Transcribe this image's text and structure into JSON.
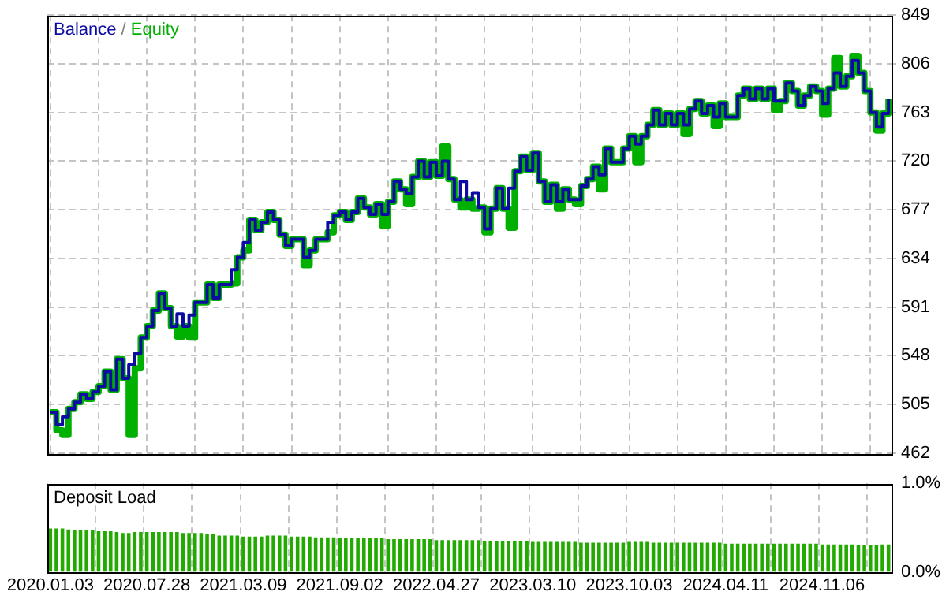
{
  "chart_data": [
    {
      "type": "step",
      "categories": [
        "2020.01.03",
        null,
        null,
        null,
        null,
        null,
        null,
        null,
        null,
        null,
        null,
        null,
        null,
        null,
        null,
        null,
        "2020.07.28",
        null,
        null,
        null,
        null,
        null,
        null,
        null,
        null,
        null,
        null,
        null,
        null,
        null,
        null,
        null,
        "2021.03.09",
        null,
        null,
        null,
        null,
        null,
        null,
        null,
        null,
        null,
        null,
        null,
        null,
        null,
        null,
        null,
        "2021.09.02",
        null,
        null,
        null,
        null,
        null,
        null,
        null,
        null,
        null,
        null,
        null,
        null,
        null,
        null,
        null,
        "2022.04.27",
        null,
        null,
        null,
        null,
        null,
        null,
        null,
        null,
        null,
        null,
        null,
        null,
        null,
        null,
        null,
        "2023.03.10",
        null,
        null,
        null,
        null,
        null,
        null,
        null,
        null,
        null,
        null,
        null,
        null,
        null,
        null,
        null,
        "2023.10.03",
        null,
        null,
        null,
        null,
        null,
        null,
        null,
        null,
        null,
        null,
        null,
        null,
        null,
        null,
        null,
        "2024.04.11",
        null,
        null,
        null,
        null,
        null,
        null,
        null,
        null,
        null,
        null,
        null,
        null,
        null,
        null,
        null,
        "2024.11.06",
        null,
        null,
        null,
        null,
        null,
        null,
        null,
        null,
        null,
        null,
        null
      ],
      "series": [
        {
          "name": "Balance",
          "color": "#0c0ca4",
          "values": [
            498,
            487,
            494,
            501,
            507,
            514,
            510,
            516,
            521,
            534,
            518,
            545,
            528,
            540,
            550,
            564,
            574,
            588,
            603,
            590,
            574,
            585,
            574,
            584,
            595,
            595,
            611,
            599,
            611,
            611,
            624,
            635,
            648,
            668,
            659,
            666,
            675,
            668,
            655,
            645,
            651,
            651,
            635,
            641,
            651,
            651,
            666,
            672,
            675,
            668,
            675,
            687,
            679,
            673,
            682,
            673,
            684,
            702,
            695,
            691,
            706,
            720,
            706,
            719,
            707,
            720,
            704,
            686,
            702,
            686,
            692,
            679,
            660,
            678,
            696,
            678,
            696,
            711,
            724,
            712,
            727,
            702,
            684,
            699,
            684,
            695,
            686,
            686,
            698,
            704,
            715,
            708,
            731,
            719,
            719,
            731,
            742,
            735,
            742,
            752,
            765,
            752,
            762,
            752,
            762,
            752,
            766,
            773,
            762,
            769,
            759,
            771,
            759,
            759,
            778,
            784,
            775,
            784,
            775,
            784,
            773,
            773,
            789,
            782,
            769,
            778,
            786,
            782,
            771,
            784,
            798,
            786,
            795,
            809,
            798,
            782,
            763,
            750,
            762,
            775
          ]
        },
        {
          "name": "Equity",
          "color": "#00b000",
          "values": [
            498,
            482,
            478,
            501,
            507,
            514,
            510,
            516,
            521,
            534,
            518,
            545,
            528,
            478,
            537,
            564,
            574,
            588,
            603,
            590,
            574,
            565,
            574,
            564,
            595,
            595,
            611,
            599,
            611,
            611,
            612,
            635,
            641,
            668,
            659,
            666,
            675,
            668,
            655,
            645,
            651,
            651,
            628,
            641,
            651,
            651,
            657,
            672,
            675,
            668,
            675,
            687,
            679,
            673,
            682,
            663,
            684,
            702,
            695,
            682,
            706,
            720,
            706,
            719,
            707,
            733,
            704,
            686,
            679,
            686,
            678,
            679,
            657,
            678,
            696,
            678,
            661,
            711,
            724,
            712,
            727,
            702,
            684,
            699,
            678,
            695,
            686,
            682,
            698,
            704,
            715,
            695,
            731,
            719,
            719,
            731,
            742,
            719,
            742,
            752,
            765,
            752,
            762,
            752,
            762,
            744,
            766,
            773,
            762,
            769,
            751,
            771,
            759,
            759,
            778,
            784,
            775,
            784,
            775,
            784,
            765,
            773,
            789,
            782,
            769,
            778,
            786,
            782,
            761,
            784,
            811,
            786,
            795,
            813,
            798,
            782,
            763,
            747,
            762,
            775
          ]
        }
      ],
      "ylim": [
        462,
        849
      ],
      "yticks": [
        462,
        505,
        548,
        591,
        634,
        677,
        720,
        763,
        806,
        849
      ],
      "grid": true,
      "legend": "top left",
      "annotations": [
        "/"
      ],
      "tick_labels": "y"
    },
    {
      "type": "bar",
      "title": "Deposit Load",
      "categories": [
        "2020.01.03",
        null,
        null,
        null,
        null,
        null,
        null,
        null,
        null,
        null,
        null,
        null,
        null,
        null,
        null,
        null,
        "2020.07.28",
        null,
        null,
        null,
        null,
        null,
        null,
        null,
        null,
        null,
        null,
        null,
        null,
        null,
        null,
        null,
        "2021.03.09",
        null,
        null,
        null,
        null,
        null,
        null,
        null,
        null,
        null,
        null,
        null,
        null,
        null,
        null,
        null,
        "2021.09.02",
        null,
        null,
        null,
        null,
        null,
        null,
        null,
        null,
        null,
        null,
        null,
        null,
        null,
        null,
        null,
        "2022.04.27",
        null,
        null,
        null,
        null,
        null,
        null,
        null,
        null,
        null,
        null,
        null,
        null,
        null,
        null,
        null,
        "2023.03.10",
        null,
        null,
        null,
        null,
        null,
        null,
        null,
        null,
        null,
        null,
        null,
        null,
        null,
        null,
        null,
        "2023.10.03",
        null,
        null,
        null,
        null,
        null,
        null,
        null,
        null,
        null,
        null,
        null,
        null,
        null,
        null,
        null,
        "2024.04.11",
        null,
        null,
        null,
        null,
        null,
        null,
        null,
        null,
        null,
        null,
        null,
        null,
        null,
        null,
        null,
        "2024.11.06",
        null,
        null,
        null,
        null,
        null,
        null,
        null,
        null,
        null,
        null,
        null
      ],
      "values": [
        0.49,
        0.49,
        0.49,
        0.48,
        0.47,
        0.47,
        0.47,
        0.47,
        0.46,
        0.46,
        0.46,
        0.45,
        0.44,
        0.44,
        0.45,
        0.45,
        0.45,
        0.45,
        0.45,
        0.45,
        0.45,
        0.45,
        0.44,
        0.44,
        0.44,
        0.44,
        0.43,
        0.43,
        0.41,
        0.41,
        0.41,
        0.41,
        0.4,
        0.4,
        0.4,
        0.4,
        0.41,
        0.41,
        0.41,
        0.41,
        0.4,
        0.4,
        0.4,
        0.4,
        0.39,
        0.39,
        0.39,
        0.39,
        0.38,
        0.38,
        0.38,
        0.38,
        0.38,
        0.38,
        0.38,
        0.38,
        0.37,
        0.37,
        0.37,
        0.37,
        0.37,
        0.37,
        0.37,
        0.37,
        0.36,
        0.36,
        0.36,
        0.36,
        0.36,
        0.36,
        0.36,
        0.36,
        0.35,
        0.35,
        0.35,
        0.35,
        0.35,
        0.35,
        0.35,
        0.35,
        0.34,
        0.34,
        0.34,
        0.34,
        0.34,
        0.34,
        0.34,
        0.34,
        0.33,
        0.33,
        0.33,
        0.33,
        0.33,
        0.33,
        0.33,
        0.33,
        0.34,
        0.34,
        0.34,
        0.34,
        0.33,
        0.33,
        0.33,
        0.33,
        0.33,
        0.33,
        0.33,
        0.33,
        0.33,
        0.33,
        0.33,
        0.33,
        0.32,
        0.32,
        0.32,
        0.32,
        0.32,
        0.32,
        0.32,
        0.32,
        0.32,
        0.32,
        0.32,
        0.32,
        0.32,
        0.32,
        0.32,
        0.32,
        0.31,
        0.31,
        0.31,
        0.31,
        0.31,
        0.31,
        0.3,
        0.3,
        0.3,
        0.3,
        0.31,
        0.31
      ],
      "color": "#22aa00",
      "ylim": [
        0,
        1
      ],
      "yticks": [
        {
          "value": 0,
          "label": "0.0%"
        },
        {
          "value": 1,
          "label": "1.0%"
        }
      ],
      "grid": "x"
    }
  ]
}
